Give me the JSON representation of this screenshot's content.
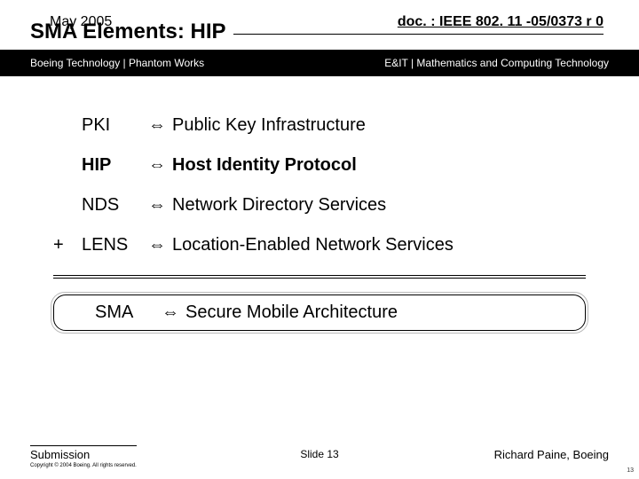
{
  "header": {
    "date": "May 2005",
    "doc_ref": "doc. : IEEE 802. 11 -05/0373 r 0",
    "title": "SMA Elements: HIP",
    "left_org": "Boeing Technology | Phantom Works",
    "right_org": "E&IT | Mathematics and Computing Technology"
  },
  "rows": [
    {
      "plus": "",
      "abbr": "PKI",
      "arrow": "⇔",
      "expansion": "Public Key Infrastructure",
      "bold": false
    },
    {
      "plus": "",
      "abbr": "HIP",
      "arrow": "⇔",
      "expansion": "Host Identity Protocol",
      "bold": true
    },
    {
      "plus": "",
      "abbr": "NDS",
      "arrow": "⇔",
      "expansion": "Network Directory Services",
      "bold": false
    },
    {
      "plus": "+",
      "abbr": "LENS",
      "arrow": "⇔",
      "expansion": "Location-Enabled Network Services",
      "bold": false
    }
  ],
  "result": {
    "abbr": "SMA",
    "arrow": "⇔",
    "expansion": "Secure Mobile Architecture"
  },
  "footer": {
    "submission": "Submission",
    "copyright": "Copyright © 2004 Boeing. All rights reserved.",
    "slide": "Slide 13",
    "author": "Richard Paine, Boeing",
    "pagenum": "13"
  },
  "colors": {
    "bg": "#ffffff",
    "bar": "#000000",
    "text": "#000000"
  }
}
